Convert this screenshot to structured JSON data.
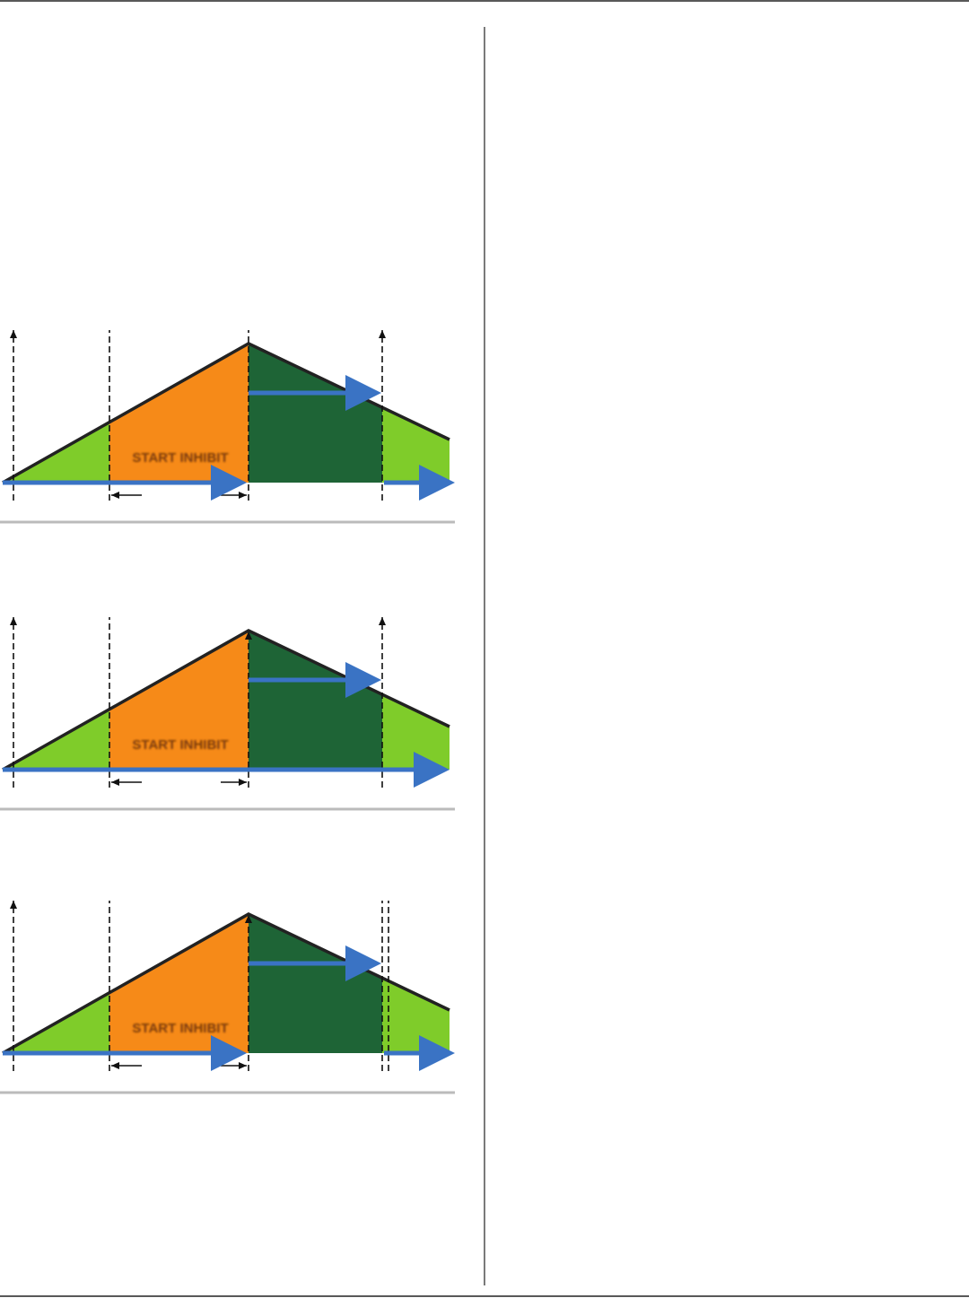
{
  "diagrams": [
    {
      "label": "START INHIBIT"
    },
    {
      "label": "START INHIBIT"
    },
    {
      "label": "START INHIBIT"
    }
  ]
}
